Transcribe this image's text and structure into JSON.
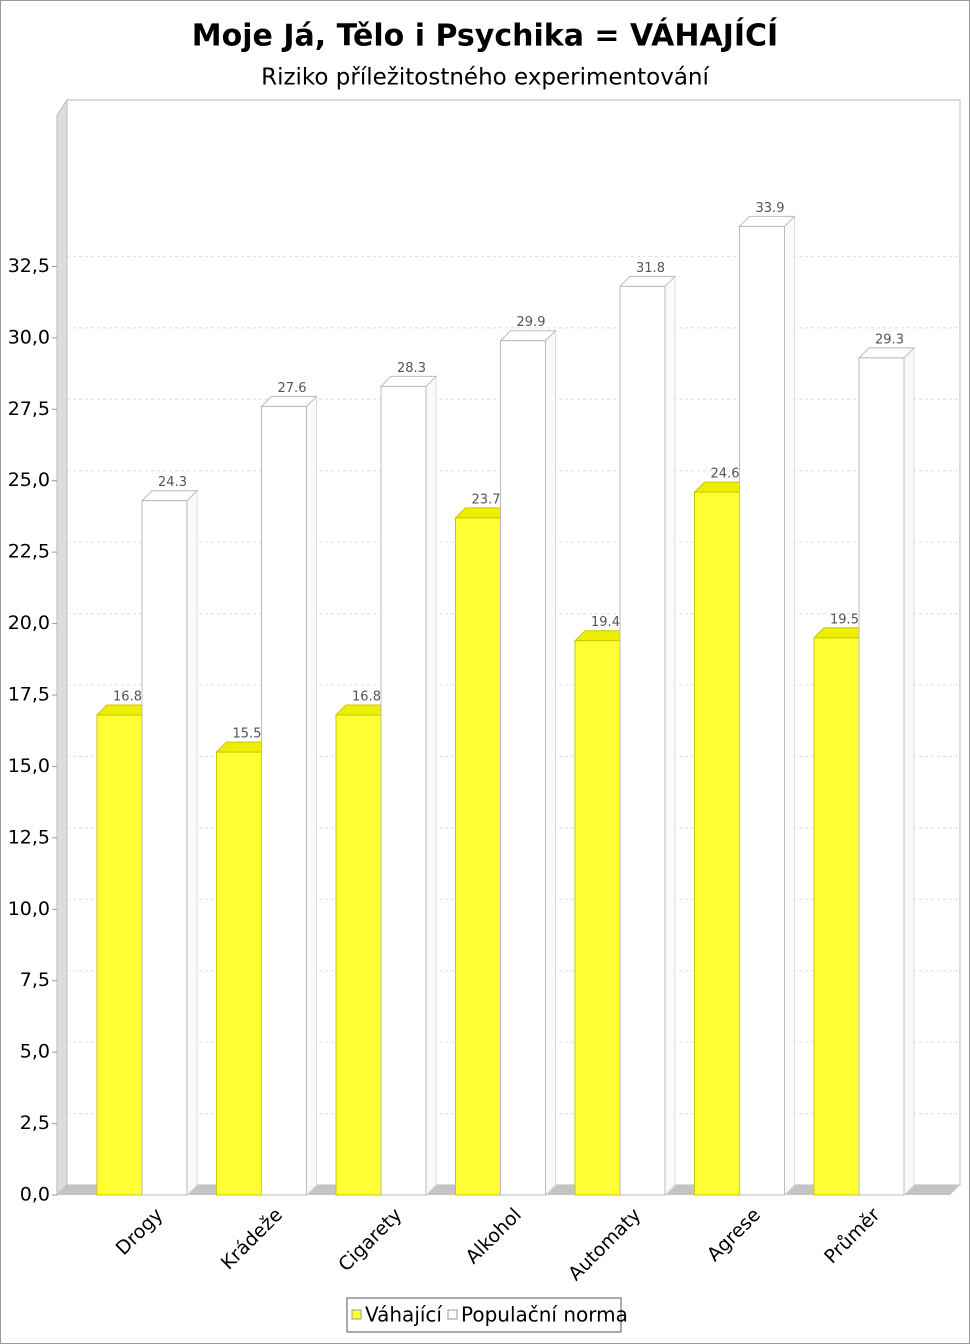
{
  "chart_data": {
    "type": "bar3d",
    "title": "Moje Já, Tělo i Psychika = VÁHAJÍCÍ",
    "subtitle": "Riziko příležitostného experimentování",
    "categories": [
      "Drogy",
      "Krádeže",
      "Cigarety",
      "Alkohol",
      "Automaty",
      "Agrese",
      "Průměr"
    ],
    "series": [
      {
        "name": "Váhající",
        "color": "#ffff33",
        "values": [
          16.8,
          15.5,
          16.8,
          23.7,
          19.4,
          24.6,
          19.5
        ]
      },
      {
        "name": "Populační norma",
        "color": "#ffffff",
        "values": [
          24.3,
          27.6,
          28.3,
          29.9,
          31.8,
          33.9,
          29.3
        ]
      }
    ],
    "ylim": [
      0,
      37.8
    ],
    "yticks": [
      {
        "value": 0,
        "label": "0,0"
      },
      {
        "value": 2.5,
        "label": "2,5"
      },
      {
        "value": 5,
        "label": "5,0"
      },
      {
        "value": 7.5,
        "label": "7,5"
      },
      {
        "value": 10,
        "label": "10,0"
      },
      {
        "value": 12.5,
        "label": "12,5"
      },
      {
        "value": 15,
        "label": "15,0"
      },
      {
        "value": 17.5,
        "label": "17,5"
      },
      {
        "value": 20,
        "label": "20,0"
      },
      {
        "value": 22.5,
        "label": "22,5"
      },
      {
        "value": 25,
        "label": "25,0"
      },
      {
        "value": 27.5,
        "label": "27,5"
      },
      {
        "value": 30,
        "label": "30,0"
      },
      {
        "value": 32.5,
        "label": "32,5"
      }
    ],
    "grid": true,
    "legend": "bottom"
  }
}
